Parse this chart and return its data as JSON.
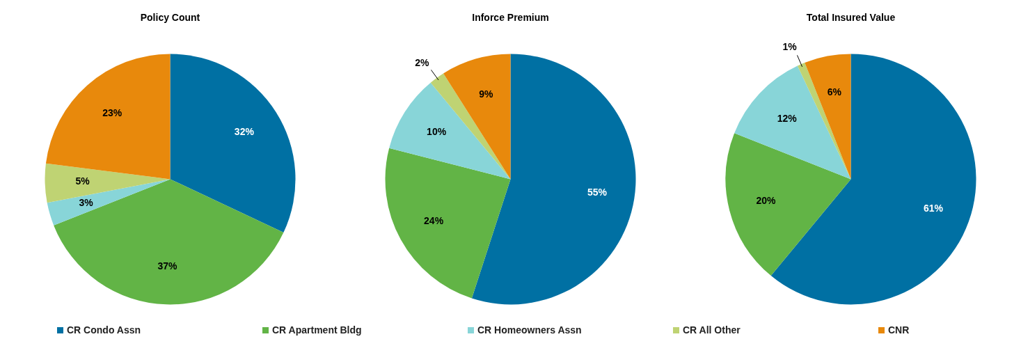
{
  "chart_data": [
    {
      "type": "pie",
      "title": "Policy Count",
      "categories": [
        "CR Condo Assn",
        "CR Apartment Bldg",
        "CR Homeowners Assn",
        "CR All Other",
        "CNR"
      ],
      "values": [
        32,
        37,
        3,
        5,
        23
      ],
      "value_labels": [
        "32%",
        "37%",
        "3%",
        "5%",
        "23%"
      ],
      "colors": [
        "#0070a3",
        "#62b446",
        "#88d5d8",
        "#bfd373",
        "#e8890c"
      ],
      "legend": "bottom"
    },
    {
      "type": "pie",
      "title": "Inforce Premium",
      "categories": [
        null,
        null,
        null,
        null,
        null
      ],
      "values": [
        55,
        24,
        10,
        2,
        9
      ],
      "value_labels": [
        "55%",
        "24%",
        "10%",
        "2%",
        "9%"
      ],
      "colors": [
        "#0070a3",
        "#62b446",
        "#88d5d8",
        "#bfd373",
        "#e8890c"
      ]
    },
    {
      "type": "pie",
      "title": "Total Insured Value",
      "categories": [
        null,
        null,
        null,
        null,
        null
      ],
      "values": [
        61,
        20,
        12,
        1,
        6
      ],
      "value_labels": [
        "61%",
        "20%",
        "12%",
        "1%",
        "6%"
      ],
      "colors": [
        "#0070a3",
        "#62b446",
        "#88d5d8",
        "#bfd373",
        "#e8890c"
      ]
    }
  ]
}
